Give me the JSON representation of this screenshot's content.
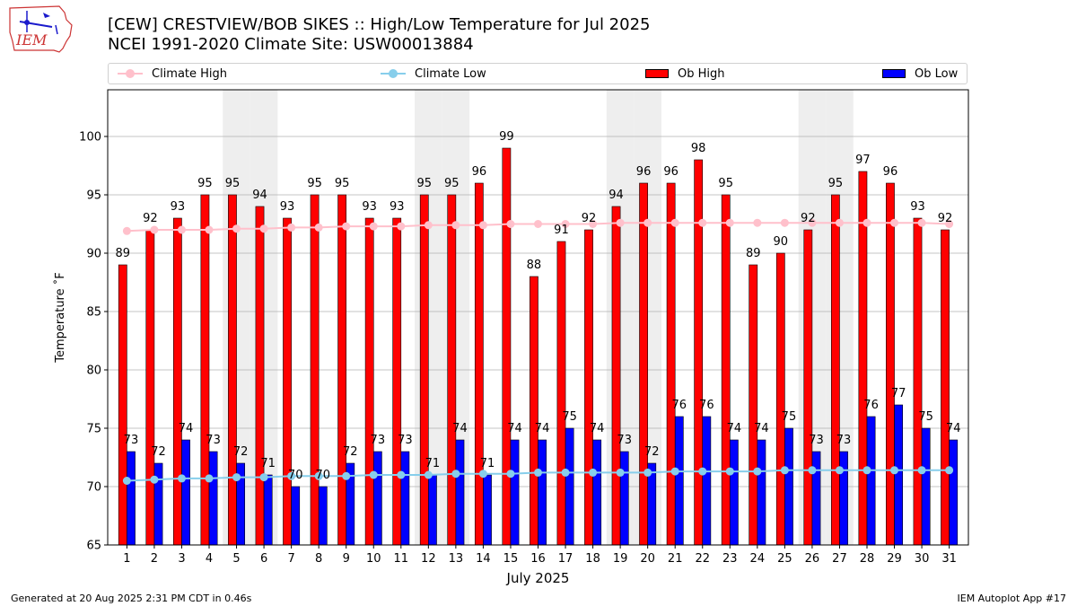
{
  "header": {
    "title_line1": "[CEW] CRESTVIEW/BOB SIKES :: High/Low Temperature for Jul 2025",
    "title_line2": "NCEI 1991-2020 Climate Site: USW00013884",
    "logo_text": "IEM"
  },
  "legend": {
    "climate_high": "Climate High",
    "climate_low": "Climate Low",
    "ob_high": "Ob High",
    "ob_low": "Ob Low"
  },
  "colors": {
    "ob_high": "#ff0000",
    "ob_low": "#0000ff",
    "climate_high": "#ffc0cb",
    "climate_low": "#87ceeb",
    "weekend_shade": "#eeeeee",
    "grid": "#b0b0b0"
  },
  "chart_data": {
    "type": "bar",
    "title": "[CEW] CRESTVIEW/BOB SIKES :: High/Low Temperature for Jul 2025",
    "xlabel": "July 2025",
    "ylabel": "Temperature ˚F",
    "ylim": [
      65,
      104
    ],
    "yticks": [
      65,
      70,
      75,
      80,
      85,
      90,
      95,
      100
    ],
    "grid": true,
    "legend_position": "top",
    "categories": [
      "1",
      "2",
      "3",
      "4",
      "5",
      "6",
      "7",
      "8",
      "9",
      "10",
      "11",
      "12",
      "13",
      "14",
      "15",
      "16",
      "17",
      "18",
      "19",
      "20",
      "21",
      "22",
      "23",
      "24",
      "25",
      "26",
      "27",
      "28",
      "29",
      "30",
      "31"
    ],
    "shaded_days": [
      5,
      6,
      12,
      13,
      19,
      20,
      26,
      27
    ],
    "series": [
      {
        "name": "Ob High",
        "type": "bar",
        "values": [
          89,
          92,
          93,
          95,
          95,
          94,
          93,
          95,
          95,
          93,
          93,
          95,
          95,
          96,
          99,
          88,
          91,
          92,
          94,
          96,
          96,
          98,
          95,
          89,
          90,
          92,
          95,
          97,
          96,
          93,
          92
        ]
      },
      {
        "name": "Ob Low",
        "type": "bar",
        "values": [
          73,
          72,
          74,
          73,
          72,
          71,
          70,
          70,
          72,
          73,
          73,
          71,
          74,
          71,
          74,
          74,
          75,
          74,
          73,
          72,
          76,
          76,
          74,
          74,
          75,
          73,
          73,
          76,
          77,
          75,
          74
        ]
      },
      {
        "name": "Climate High",
        "type": "line",
        "values": [
          91.9,
          92.0,
          92.0,
          92.0,
          92.1,
          92.1,
          92.2,
          92.2,
          92.3,
          92.3,
          92.3,
          92.4,
          92.4,
          92.4,
          92.5,
          92.5,
          92.5,
          92.5,
          92.6,
          92.6,
          92.6,
          92.6,
          92.6,
          92.6,
          92.6,
          92.6,
          92.6,
          92.6,
          92.6,
          92.6,
          92.5
        ]
      },
      {
        "name": "Climate Low",
        "type": "line",
        "values": [
          70.5,
          70.6,
          70.7,
          70.7,
          70.8,
          70.8,
          70.9,
          70.9,
          70.9,
          71.0,
          71.0,
          71.0,
          71.1,
          71.1,
          71.1,
          71.2,
          71.2,
          71.2,
          71.2,
          71.2,
          71.3,
          71.3,
          71.3,
          71.3,
          71.4,
          71.4,
          71.4,
          71.4,
          71.4,
          71.4,
          71.4
        ]
      }
    ]
  },
  "footer": {
    "generated": "Generated at 20 Aug 2025 2:31 PM CDT in 0.46s",
    "app": "IEM Autoplot App #17"
  }
}
